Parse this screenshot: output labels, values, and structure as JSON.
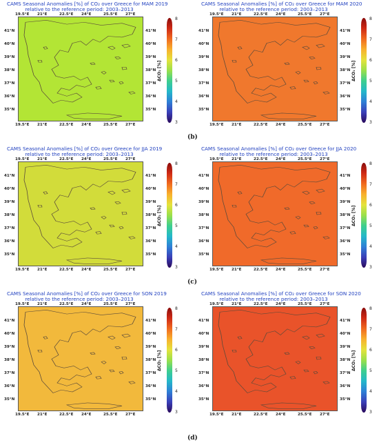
{
  "panels": [
    {
      "title_line1": "CAMS Seasonal Anomalies [%] of CO₂ over Greece for MAM 2019",
      "title_line2": "relative to the reference period: 2003–2013",
      "fill": "#b3e535"
    },
    {
      "title_line1": "CAMS Seasonal Anomalies [%] of CO₂ over Greece for MAM 2020",
      "title_line2": "relative to the reference period: 2003–2013",
      "fill": "#f0782d"
    },
    {
      "title_line1": "CAMS Seasonal Anomalies [%] of CO₂ over Greece for JJA 2019",
      "title_line2": "relative to the reference period: 2003–2013",
      "fill": "#d2dc3a"
    },
    {
      "title_line1": "CAMS Seasonal Anomalies [%] of CO₂ over Greece for JJA 2020",
      "title_line2": "relative to the reference period: 2003–2013",
      "fill": "#f06a2a"
    },
    {
      "title_line1": "CAMS Seasonal Anomalies [%] of CO₂ over Greece for SON 2019",
      "title_line2": "relative to the reference period: 2003–2013",
      "fill": "#f2b93c"
    },
    {
      "title_line1": "CAMS Seasonal Anomalies [%] of CO₂ over Greece for SON 2020",
      "title_line2": "relative to the reference period: 2003–2013",
      "fill": "#e9532a"
    }
  ],
  "lon_ticks": [
    "19.5°E",
    "21°E",
    "22.5°E",
    "24°E",
    "25.5°E",
    "27°E"
  ],
  "lat_ticks": [
    "41°N",
    "40°N",
    "39°N",
    "38°N",
    "37°N",
    "36°N",
    "35°N"
  ],
  "colorbar": {
    "ticks": [
      "8",
      "7",
      "6",
      "5",
      "4",
      "3"
    ],
    "label": "ΔCO₂ [%]"
  },
  "captions": [
    "(b)",
    "(c)",
    "(d)"
  ]
}
